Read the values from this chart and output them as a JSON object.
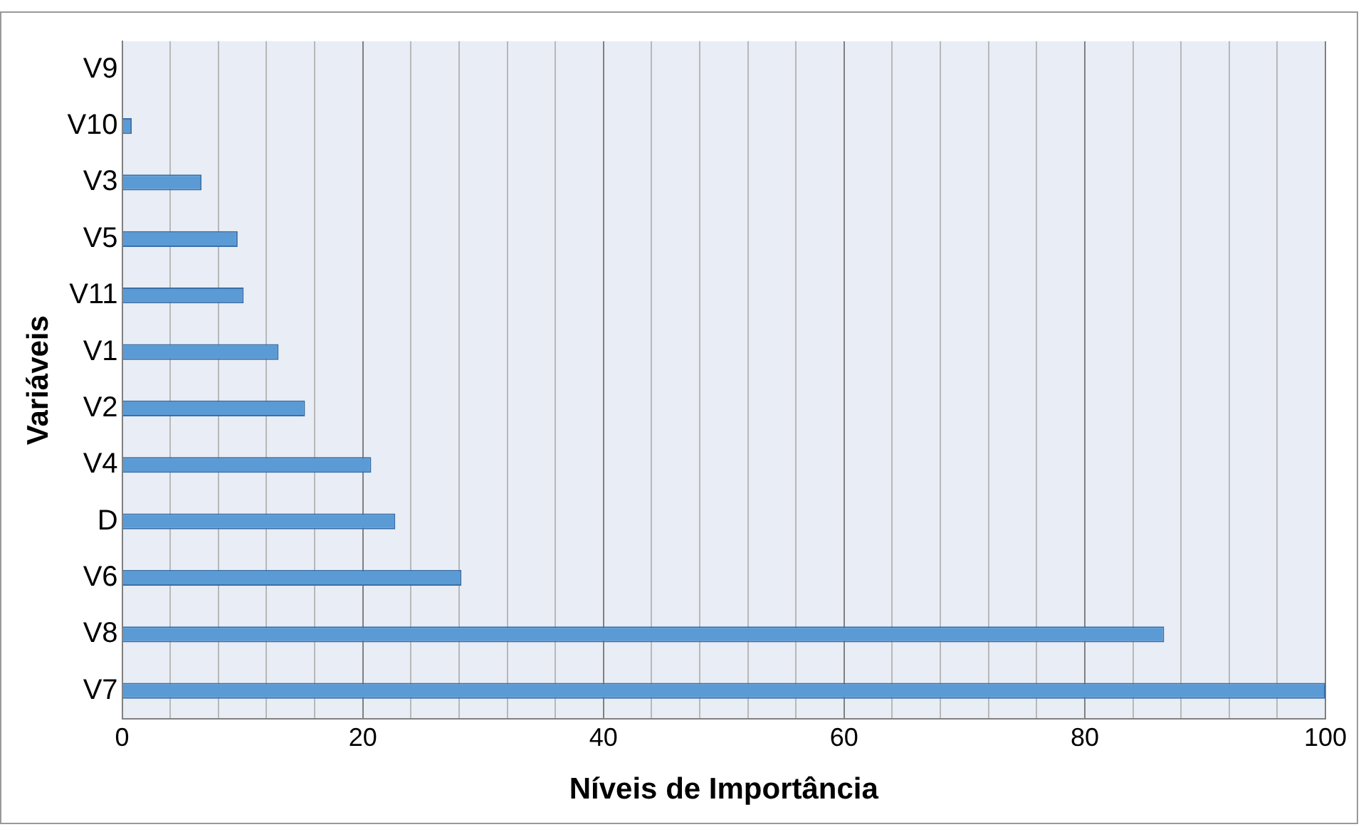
{
  "chart_data": {
    "type": "bar",
    "orientation": "horizontal",
    "xlabel": "Níveis de Importância",
    "ylabel": "Variáveis",
    "categories": [
      "V9",
      "V10",
      "V3",
      "V5",
      "V11",
      "V1",
      "V2",
      "V4",
      "D",
      "V6",
      "V8",
      "V7"
    ],
    "values": [
      0,
      0.8,
      6.6,
      9.6,
      10.1,
      13.0,
      15.2,
      20.7,
      22.7,
      28.2,
      86.6,
      100
    ],
    "color": "#5b9bd5",
    "xlim": [
      0,
      100
    ],
    "xticks": [
      0,
      {
        "value": 4,
        "label": null
      },
      {
        "value": 8,
        "label": null
      },
      {
        "value": 12,
        "label": null
      },
      {
        "value": 16,
        "label": null
      },
      20,
      {
        "value": 24,
        "label": null
      },
      {
        "value": 28,
        "label": null
      },
      {
        "value": 32,
        "label": null
      },
      {
        "value": 36,
        "label": null
      },
      40,
      {
        "value": 44,
        "label": null
      },
      {
        "value": 48,
        "label": null
      },
      {
        "value": 52,
        "label": null
      },
      {
        "value": 56,
        "label": null
      },
      60,
      {
        "value": 64,
        "label": null
      },
      {
        "value": 68,
        "label": null
      },
      {
        "value": 72,
        "label": null
      },
      {
        "value": 76,
        "label": null
      },
      80,
      {
        "value": 84,
        "label": null
      },
      {
        "value": 88,
        "label": null
      },
      {
        "value": 92,
        "label": null
      },
      {
        "value": 96,
        "label": null
      },
      100
    ],
    "grid": "x"
  }
}
